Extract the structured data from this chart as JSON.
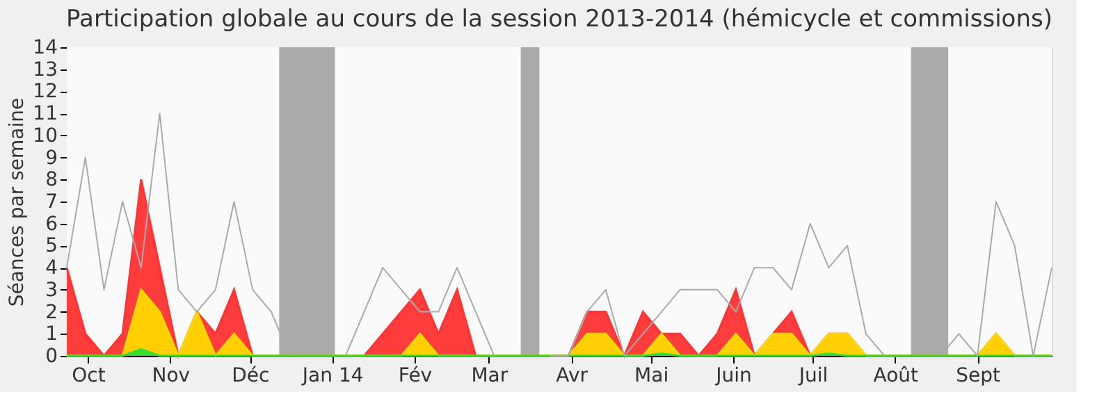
{
  "chart_data": {
    "type": "area",
    "title": "Participation globale au cours de la session 2013-2014 (hémicycle et commissions)",
    "ylabel": "Séances par semaine",
    "x": [
      "2013-09-23",
      "2013-09-30",
      "2013-10-07",
      "2013-10-14",
      "2013-10-21",
      "2013-10-28",
      "2013-11-04",
      "2013-11-11",
      "2013-11-18",
      "2013-11-25",
      "2013-12-02",
      "2013-12-09",
      "2013-12-16",
      "2013-12-23",
      "2013-12-30",
      "2014-01-06",
      "2014-01-13",
      "2014-01-20",
      "2014-01-27",
      "2014-02-03",
      "2014-02-10",
      "2014-02-17",
      "2014-02-24",
      "2014-03-03",
      "2014-03-10",
      "2014-03-17",
      "2014-03-24",
      "2014-03-31",
      "2014-04-07",
      "2014-04-14",
      "2014-04-21",
      "2014-04-28",
      "2014-05-05",
      "2014-05-12",
      "2014-05-19",
      "2014-05-26",
      "2014-06-02",
      "2014-06-09",
      "2014-06-16",
      "2014-06-23",
      "2014-06-30",
      "2014-07-07",
      "2014-07-14",
      "2014-07-21",
      "2014-07-28",
      "2014-08-04",
      "2014-08-11",
      "2014-08-18",
      "2014-08-25",
      "2014-09-01",
      "2014-09-08",
      "2014-09-15",
      "2014-09-22",
      "2014-09-29"
    ],
    "series": [
      {
        "color": "#ff3333",
        "values": [
          4,
          1,
          0,
          1,
          8,
          4,
          0,
          2,
          1,
          3,
          0,
          0,
          0,
          0,
          0,
          0,
          0,
          1,
          2,
          3,
          1,
          3,
          0,
          0,
          0,
          0,
          0,
          0,
          2,
          2,
          0,
          2,
          1,
          1,
          0,
          1,
          3,
          0,
          1,
          2,
          0,
          1,
          1,
          0,
          0,
          0,
          0,
          0,
          0,
          0,
          1,
          0,
          0,
          0
        ]
      },
      {
        "color": "#ffd700",
        "values": [
          0,
          0,
          0,
          0,
          3,
          2,
          0,
          2,
          0,
          1,
          0,
          0,
          0,
          0,
          0,
          0,
          0,
          0,
          0,
          1,
          0,
          0,
          0,
          0,
          0,
          0,
          0,
          0,
          1,
          1,
          0,
          0,
          1,
          0,
          0,
          0,
          1,
          0,
          1,
          1,
          0,
          1,
          1,
          0,
          0,
          0,
          0,
          0,
          0,
          0,
          1,
          0,
          0,
          0
        ]
      },
      {
        "color": "#33dd33",
        "values": [
          0,
          0,
          0,
          0,
          0.3,
          0,
          0,
          0,
          0,
          0,
          0,
          0,
          0,
          0,
          0,
          0,
          0,
          0,
          0,
          0,
          0,
          0,
          0,
          0,
          0,
          0,
          0,
          0,
          0,
          0,
          0,
          0,
          0.1,
          0,
          0,
          0,
          0,
          0,
          0,
          0,
          0,
          0.1,
          0,
          0,
          0,
          0,
          0,
          0,
          0,
          0,
          0,
          0,
          0,
          0
        ]
      },
      {
        "type": "line",
        "color": "#aaaaaa",
        "values": [
          4,
          9,
          3,
          7,
          4,
          11,
          3,
          2,
          3,
          7,
          3,
          2,
          0,
          null,
          null,
          0,
          2,
          4,
          3,
          2,
          2,
          4,
          2,
          0,
          null,
          null,
          0,
          0,
          2,
          3,
          0,
          1,
          2,
          3,
          3,
          3,
          2,
          4,
          4,
          3,
          6,
          4,
          5,
          1,
          0,
          null,
          null,
          0,
          1,
          0,
          7,
          5,
          0,
          4
        ]
      }
    ],
    "xlim": [
      "2013-09-23",
      "2014-09-29"
    ],
    "xticks": [
      {
        "value": "2013-10-01",
        "label": "Oct"
      },
      {
        "value": "2013-11-01",
        "label": "Nov"
      },
      {
        "value": "2013-12-01",
        "label": "Déc"
      },
      {
        "value": "2014-01-01",
        "label": "Jan 14"
      },
      {
        "value": "2014-02-01",
        "label": "Fév"
      },
      {
        "value": "2014-03-01",
        "label": "Mar"
      },
      {
        "value": "2014-04-01",
        "label": "Avr"
      },
      {
        "value": "2014-05-01",
        "label": "Mai"
      },
      {
        "value": "2014-06-01",
        "label": "Juin"
      },
      {
        "value": "2014-07-01",
        "label": "Juil"
      },
      {
        "value": "2014-08-01",
        "label": "Août"
      },
      {
        "value": "2014-09-01",
        "label": "Sept"
      }
    ],
    "ylim": [
      0,
      14
    ],
    "yticks": [
      0,
      1,
      2,
      3,
      4,
      5,
      6,
      7,
      8,
      9,
      10,
      11,
      12,
      13,
      14
    ],
    "legend": false,
    "bands": [
      {
        "axis": "x",
        "from": "2013-12-12",
        "to": "2014-01-02",
        "color": "#aaaaaa"
      },
      {
        "axis": "x",
        "from": "2014-03-13",
        "to": "2014-03-20",
        "color": "#aaaaaa"
      },
      {
        "axis": "x",
        "from": "2014-08-07",
        "to": "2014-08-21",
        "color": "#aaaaaa"
      }
    ]
  }
}
